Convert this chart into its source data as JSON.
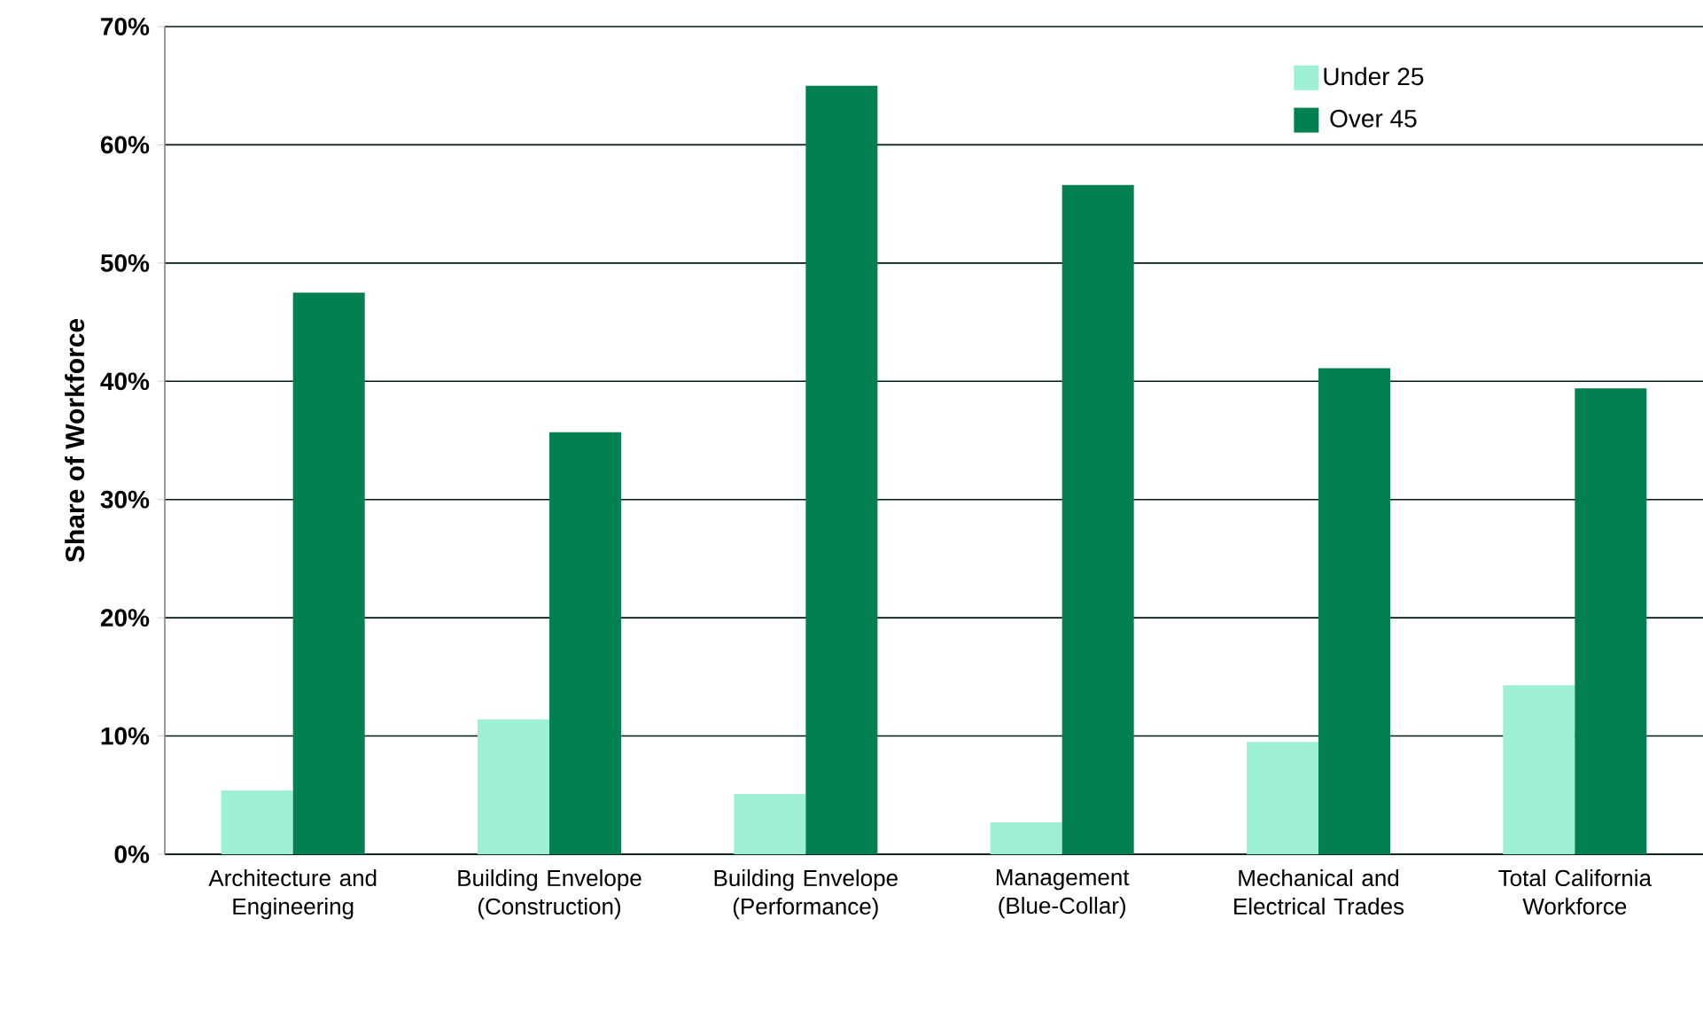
{
  "chart_data": {
    "type": "bar",
    "ylabel": "Share of Workforce",
    "categories": [
      "Architecture and Engineering",
      "Building Envelope (Construction)",
      "Building Envelope (Performance)",
      "Management (Blue-Collar)",
      "Mechanical and Electrical Trades",
      "Total California Workforce"
    ],
    "series": [
      {
        "name": "Under 25",
        "color": "#9ef0d4",
        "values": [
          5.4,
          11.4,
          5.1,
          2.7,
          9.5,
          14.3
        ]
      },
      {
        "name": "Over 45",
        "color": "#038050",
        "values": [
          47.5,
          35.7,
          65.0,
          56.6,
          41.1,
          39.4
        ]
      }
    ],
    "ylim": [
      0,
      70
    ],
    "yticks": [
      {
        "value": 0,
        "label": "0%"
      },
      {
        "value": 10,
        "label": "10%"
      },
      {
        "value": 20,
        "label": "20%"
      },
      {
        "value": 30,
        "label": "30%"
      },
      {
        "value": 40,
        "label": "40%"
      },
      {
        "value": 50,
        "label": "50%"
      },
      {
        "value": 60,
        "label": "60%"
      },
      {
        "value": 70,
        "label": "70%"
      }
    ],
    "grid": "y",
    "legend": "top right"
  }
}
